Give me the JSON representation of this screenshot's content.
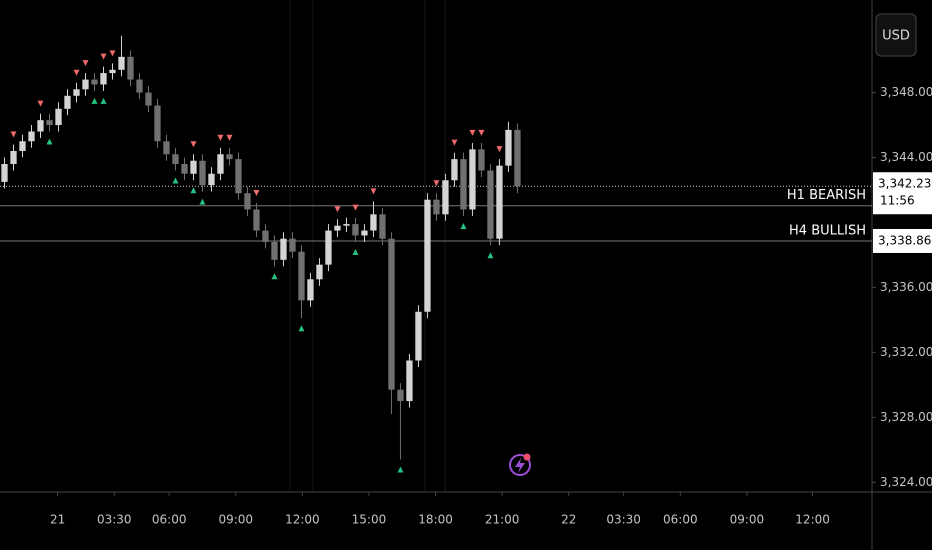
{
  "chart_data": {
    "type": "candlestick",
    "currency": "USD",
    "x": [
      0.5,
      1.5,
      2.5,
      3.5,
      4.5,
      5.5,
      6.5,
      7.5,
      8.5,
      9.5,
      10.5,
      11.5,
      12.5,
      13.5,
      14.5,
      15.5,
      16.5,
      17.5,
      18.5,
      19.5,
      20.5,
      21.5,
      22.5,
      23.5,
      24.5,
      25.5,
      26.5,
      27.5,
      28.5,
      29.5,
      30.5,
      31.5,
      32.5,
      33.5,
      34.5,
      35.5,
      36.5,
      37.5,
      38.5,
      39.5,
      40.5,
      41.5,
      42.5,
      43.5,
      44.5,
      45.5,
      46.5,
      47.5,
      48.5,
      49.5,
      50.5,
      51.5,
      52.5,
      53.5,
      54.5,
      55.5,
      56.5,
      57.5
    ],
    "open": [
      3342.5,
      3343.6,
      3344.4,
      3345.0,
      3345.6,
      3346.3,
      3346.0,
      3347.0,
      3347.8,
      3348.2,
      3348.8,
      3348.5,
      3349.2,
      3349.4,
      3350.2,
      3348.8,
      3348.0,
      3347.2,
      3345.0,
      3344.2,
      3343.6,
      3343.0,
      3343.8,
      3342.3,
      3343.0,
      3344.2,
      3343.9,
      3341.8,
      3340.8,
      3339.5,
      3338.8,
      3337.7,
      3339.0,
      3338.2,
      3335.2,
      3336.5,
      3337.4,
      3339.5,
      3339.8,
      3339.9,
      3339.2,
      3339.5,
      3340.5,
      3339.0,
      3329.7,
      3329.0,
      3331.5,
      3334.5,
      3341.4,
      3340.5,
      3342.6,
      3343.9,
      3340.8,
      3344.5,
      3343.2,
      3339.0,
      3343.5,
      3345.7
    ],
    "high": [
      3344.0,
      3344.8,
      3345.4,
      3346.0,
      3346.7,
      3346.7,
      3347.4,
      3348.2,
      3348.6,
      3349.2,
      3349.2,
      3349.6,
      3349.8,
      3351.5,
      3350.6,
      3349.2,
      3348.4,
      3347.6,
      3345.4,
      3344.6,
      3344.0,
      3344.2,
      3344.2,
      3343.4,
      3344.6,
      3344.6,
      3344.3,
      3342.2,
      3341.2,
      3339.9,
      3339.2,
      3339.4,
      3339.4,
      3338.6,
      3336.9,
      3337.8,
      3339.9,
      3340.2,
      3340.3,
      3340.3,
      3339.9,
      3341.3,
      3340.9,
      3339.4,
      3330.1,
      3331.9,
      3334.9,
      3341.8,
      3341.8,
      3343.0,
      3344.3,
      3344.3,
      3344.9,
      3344.9,
      3343.6,
      3343.9,
      3346.2,
      3346.1
    ],
    "low": [
      3342.1,
      3343.2,
      3344.0,
      3344.6,
      3345.2,
      3345.6,
      3345.6,
      3346.6,
      3347.4,
      3347.8,
      3348.1,
      3348.1,
      3348.8,
      3349.0,
      3348.4,
      3347.6,
      3346.8,
      3344.6,
      3343.8,
      3343.2,
      3342.6,
      3342.6,
      3341.9,
      3341.9,
      3342.6,
      3343.5,
      3341.4,
      3340.4,
      3339.1,
      3338.4,
      3337.3,
      3337.3,
      3337.8,
      3334.1,
      3334.8,
      3336.1,
      3337.0,
      3339.1,
      3339.4,
      3338.8,
      3338.8,
      3339.1,
      3338.6,
      3328.2,
      3325.4,
      3328.6,
      3331.1,
      3334.1,
      3340.1,
      3340.1,
      3342.2,
      3340.4,
      3340.4,
      3342.8,
      3338.6,
      3338.6,
      3343.1,
      3341.8
    ],
    "close": [
      3343.6,
      3344.4,
      3345.0,
      3345.6,
      3346.3,
      3346.0,
      3347.0,
      3347.8,
      3348.2,
      3348.8,
      3348.5,
      3349.2,
      3349.4,
      3350.2,
      3348.8,
      3348.0,
      3347.2,
      3345.0,
      3344.2,
      3343.6,
      3343.0,
      3343.8,
      3342.3,
      3343.0,
      3344.2,
      3343.9,
      3341.8,
      3340.8,
      3339.5,
      3338.8,
      3337.7,
      3339.0,
      3338.2,
      3335.2,
      3336.5,
      3337.4,
      3339.5,
      3339.8,
      3339.9,
      3339.2,
      3339.5,
      3340.5,
      3339.0,
      3329.7,
      3329.0,
      3331.5,
      3334.5,
      3341.4,
      3340.5,
      3342.6,
      3343.9,
      3340.8,
      3344.5,
      3343.2,
      3339.0,
      3343.5,
      3345.7,
      3342.23
    ],
    "up_color": "#d4d4d4",
    "down_color": "#707070",
    "sell_signals": [
      1,
      4,
      8,
      9,
      11,
      12,
      21,
      24,
      25,
      28,
      37,
      39,
      41,
      48,
      50,
      52,
      53,
      55
    ],
    "buy_signals": [
      5,
      10,
      11,
      19,
      21,
      22,
      30,
      33,
      39,
      44,
      51,
      54
    ],
    "sell_color": "#f06a6a",
    "buy_color": "#26c281",
    "levels": [
      {
        "label": "H1 BEARISH",
        "value": 3341.03
      },
      {
        "label": "H4 BULLISH",
        "value": 3338.86,
        "value_label": "3,338.86"
      }
    ],
    "last_price": {
      "value": 3342.23,
      "label": "3,342.23",
      "countdown": "11:56"
    },
    "xlim": [
      0,
      96.9
    ],
    "xticks": [
      {
        "value": 6.4,
        "label": "21"
      },
      {
        "value": 12.7,
        "label": "03:30"
      },
      {
        "value": 18.8,
        "label": "06:00"
      },
      {
        "value": 26.2,
        "label": "09:00"
      },
      {
        "value": 33.6,
        "label": "12:00"
      },
      {
        "value": 41,
        "label": "15:00"
      },
      {
        "value": 48.4,
        "label": "18:00"
      },
      {
        "value": 55.8,
        "label": "21:00"
      },
      {
        "value": 63.2,
        "label": "22"
      },
      {
        "value": 69.3,
        "label": "03:30"
      },
      {
        "value": 75.6,
        "label": "06:00"
      },
      {
        "value": 83,
        "label": "09:00"
      },
      {
        "value": 90.3,
        "label": "12:00"
      }
    ],
    "ylim": [
      3323.4,
      3353.7
    ],
    "yticks": [
      {
        "value": 3324,
        "label": "3,324.00"
      },
      {
        "value": 3328,
        "label": "3,328.00"
      },
      {
        "value": 3332,
        "label": "3,332.00"
      },
      {
        "value": 3336,
        "label": "3,336.00"
      },
      {
        "value": 3344,
        "label": "3,344.00"
      },
      {
        "value": 3348,
        "label": "3,348.00"
      }
    ]
  }
}
